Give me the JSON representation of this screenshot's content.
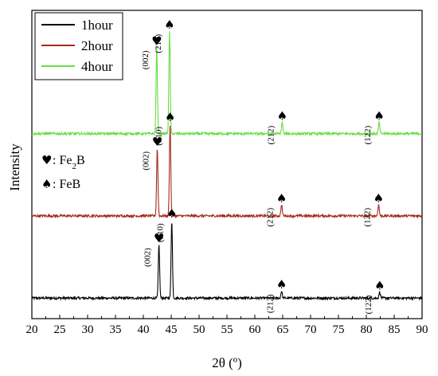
{
  "chart_data": {
    "type": "line",
    "xlabel": "2θ (º)",
    "ylabel": "Intensity",
    "xlim": [
      20,
      90
    ],
    "x_ticks": [
      "20",
      "25",
      "30",
      "35",
      "40",
      "45",
      "50",
      "55",
      "60",
      "65",
      "70",
      "75",
      "80",
      "85",
      "90"
    ],
    "grid": false,
    "legend_position": "top-left",
    "series": [
      {
        "name": "1hour",
        "color": "#000000",
        "baseline": 1.0,
        "peaks": [
          {
            "x": 42.8,
            "height": 2.6,
            "label": "(002)",
            "marker": "heart"
          },
          {
            "x": 45.1,
            "height": 3.8,
            "label": "(210)",
            "marker": "spade"
          },
          {
            "x": 64.8,
            "height": 0.35,
            "label": "(212)",
            "marker": "spade"
          },
          {
            "x": 82.4,
            "height": 0.3,
            "label": "(122)",
            "marker": "spade"
          }
        ]
      },
      {
        "name": "2hour",
        "color": "#a52a1a",
        "baseline": 5.0,
        "peaks": [
          {
            "x": 42.5,
            "height": 3.3,
            "label": "(002)",
            "marker": "heart"
          },
          {
            "x": 44.8,
            "height": 4.5,
            "label": "(210)",
            "marker": "spade"
          },
          {
            "x": 64.8,
            "height": 0.55,
            "label": "(212)",
            "marker": "spade"
          },
          {
            "x": 82.2,
            "height": 0.55,
            "label": "(122)",
            "marker": "spade"
          }
        ]
      },
      {
        "name": "4hour",
        "color": "#66dd44",
        "baseline": 9.0,
        "peaks": [
          {
            "x": 42.4,
            "height": 4.2,
            "label": "(002)",
            "marker": "heart"
          },
          {
            "x": 44.7,
            "height": 5.0,
            "label": "(210)",
            "marker": "spade"
          },
          {
            "x": 64.9,
            "height": 0.55,
            "label": "(212)",
            "marker": "spade"
          },
          {
            "x": 82.3,
            "height": 0.55,
            "label": "(122)",
            "marker": "spade"
          }
        ]
      }
    ],
    "phase_key": [
      {
        "symbol": "♥",
        "prefix": ": Fe",
        "sub": "2",
        "suffix": "B"
      },
      {
        "symbol": "♠",
        "prefix": ": FeB",
        "sub": "",
        "suffix": ""
      }
    ]
  }
}
